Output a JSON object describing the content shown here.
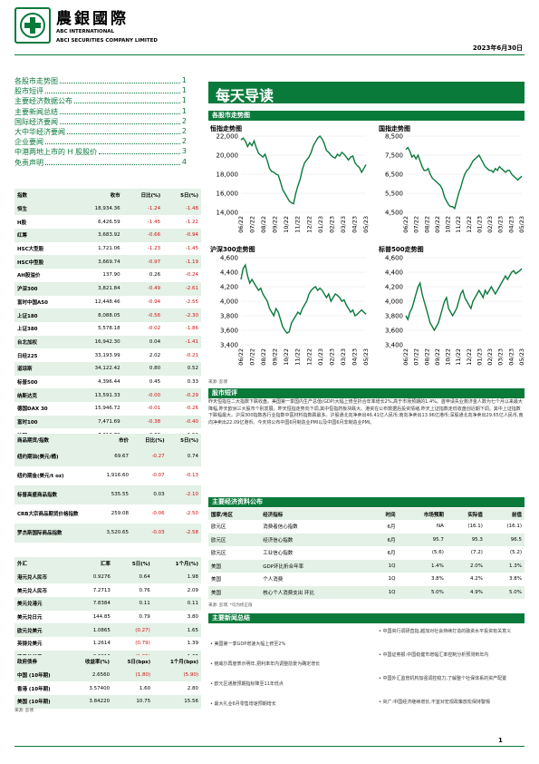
{
  "header": {
    "brand_cn": "農銀國際",
    "brand_en1": "ABC INTERNATIONAL",
    "brand_en2": "ABCI SECURITIES COMPANY LIMITED",
    "date": "2023年6月30日"
  },
  "toc": [
    {
      "label": "各股市走势图",
      "page": "1"
    },
    {
      "label": "股市短评",
      "page": "1"
    },
    {
      "label": "主要经济数据公布",
      "page": "1"
    },
    {
      "label": "主要新闻总结",
      "page": "1"
    },
    {
      "label": "国际经济要闻",
      "page": "2"
    },
    {
      "label": "大中华经济要闻",
      "page": "2"
    },
    {
      "label": "企业要闻",
      "page": "2"
    },
    {
      "label": "中港两地上市的 H 股股价",
      "page": "3"
    },
    {
      "label": "免责声明",
      "page": "4"
    }
  ],
  "title": "每天导读",
  "sections": {
    "charts": "各股市走势图",
    "commentary": "股市短评",
    "econ": "主要经济资料公布",
    "news": "主要新闻总结"
  },
  "charts": [
    {
      "title": "恒指走势图",
      "type": "line",
      "yticks": [
        "22,000",
        "20,000",
        "18,000",
        "16,000",
        "14,000"
      ],
      "ylim": [
        14000,
        22000
      ],
      "xticks": [
        "06/22",
        "07/22",
        "08/22",
        "09/22",
        "10/22",
        "11/22",
        "12/22",
        "01/23",
        "02/23",
        "03/23",
        "04/23",
        "05/23"
      ],
      "values": [
        21600,
        21800,
        21500,
        20900,
        21300,
        21000,
        21500,
        20800,
        20200,
        20000,
        19800,
        20100,
        19400,
        18600,
        18300,
        18200,
        18000,
        17900,
        17200,
        16400,
        16000,
        15600,
        15200,
        15000,
        14900,
        16000,
        16800,
        17500,
        18500,
        19200,
        19500,
        19800,
        20300,
        21000,
        21400,
        21800,
        22000,
        21700,
        21200,
        20500,
        20300,
        20000,
        19800,
        19700,
        20100,
        19900,
        20300,
        20100,
        19800,
        19500,
        19800,
        19900,
        19200,
        18900,
        18700,
        18200,
        18600,
        19000
      ]
    },
    {
      "title": "国指走势图",
      "type": "line",
      "yticks": [
        "8,500",
        "7,500",
        "6,500",
        "5,500",
        "4,500"
      ],
      "ylim": [
        4500,
        8500
      ],
      "xticks": [
        "06/22",
        "07/22",
        "08/22",
        "09/22",
        "10/22",
        "11/22",
        "12/22",
        "01/23",
        "02/23",
        "03/23",
        "04/23",
        "05/23"
      ],
      "values": [
        7800,
        7900,
        7700,
        7400,
        7500,
        7300,
        7500,
        7200,
        6900,
        6700,
        6700,
        6800,
        6500,
        6300,
        6200,
        6100,
        6000,
        5900,
        5700,
        5300,
        5100,
        4900,
        4800,
        4800,
        4700,
        5100,
        5500,
        5800,
        6200,
        6500,
        6700,
        6800,
        7000,
        7200,
        7300,
        7400,
        7500,
        7300,
        7100,
        6900,
        6800,
        6700,
        6700,
        6600,
        6800,
        6700,
        6900,
        6800,
        6700,
        6600,
        6700,
        6700,
        6500,
        6400,
        6300,
        6200,
        6300,
        6400
      ]
    },
    {
      "title": "沪深300走势图",
      "type": "line",
      "yticks": [
        "4,600",
        "4,400",
        "4,200",
        "4,000",
        "3,800",
        "3,600",
        "3,400"
      ],
      "ylim": [
        3400,
        4600
      ],
      "xticks": [
        "06/22",
        "07/22",
        "08/22",
        "09/22",
        "10/22",
        "11/22",
        "12/22",
        "01/23",
        "02/23",
        "03/23",
        "04/23",
        "05/23"
      ],
      "values": [
        4300,
        4450,
        4500,
        4350,
        4250,
        4300,
        4250,
        4200,
        4150,
        4180,
        4100,
        4050,
        4000,
        3900,
        3850,
        3800,
        3900,
        3850,
        3750,
        3650,
        3600,
        3560,
        3580,
        3700,
        3750,
        3800,
        3850,
        3820,
        3900,
        3950,
        4000,
        4100,
        4150,
        4180,
        4200,
        4150,
        4180,
        4150,
        4100,
        4050,
        4100,
        4000,
        4050,
        4100,
        4080,
        4050,
        4000,
        4020,
        3950,
        3900,
        3850,
        3880,
        3800,
        3820,
        3850,
        3880,
        3850,
        3820
      ]
    },
    {
      "title": "标普500走势图",
      "type": "line",
      "yticks": [
        "4,600",
        "4,400",
        "4,200",
        "4,000",
        "3,800",
        "3,600",
        "3,400"
      ],
      "ylim": [
        3400,
        4600
      ],
      "xticks": [
        "06/22",
        "07/22",
        "08/22",
        "09/22",
        "10/22",
        "11/22",
        "12/22",
        "01/23",
        "02/23",
        "03/23",
        "04/23",
        "05/23"
      ],
      "values": [
        3800,
        3750,
        3850,
        3900,
        4000,
        4100,
        4200,
        4250,
        4100,
        4000,
        3900,
        3800,
        3700,
        3650,
        3600,
        3650,
        3700,
        3800,
        3900,
        4000,
        4050,
        3900,
        3850,
        3800,
        3850,
        3900,
        4000,
        4100,
        4150,
        4050,
        4000,
        3950,
        3900,
        4000,
        4050,
        4100,
        4150,
        4100,
        4050,
        4150,
        4100,
        4150,
        4200,
        4150,
        4100,
        4150,
        4200,
        4250,
        4300,
        4350,
        4300,
        4350,
        4400,
        4420,
        4380,
        4400,
        4420,
        4450
      ]
    }
  ],
  "chart_source": "来源: 彭博",
  "market_table": {
    "headers": [
      "指数",
      "收市",
      "日比(%)",
      "5日(%)"
    ],
    "rows": [
      [
        "恒生",
        "18,934.36",
        "-1.24",
        "-1.48"
      ],
      [
        "H股",
        "6,426.59",
        "-1.45",
        "-1.22"
      ],
      [
        "红筹",
        "3,683.92",
        "-0.66",
        "-0.94"
      ],
      [
        "HSC大型股",
        "1,721.06",
        "-1.23",
        "-1.45"
      ],
      [
        "HSC中型股",
        "3,669.74",
        "-0.97",
        "-1.19"
      ],
      [
        "AH股溢价",
        "137.90",
        "0.26",
        "-0.24"
      ],
      [
        "沪深300",
        "3,821.84",
        "-0.49",
        "-2.61"
      ],
      [
        "富时中国A50",
        "12,448.46",
        "-0.94",
        "-2.55"
      ],
      [
        "上证180",
        "8,088.05",
        "-0.56",
        "-2.30"
      ],
      [
        "上证380",
        "5,578.18",
        "-0.02",
        "-1.86"
      ],
      [
        "台北加权",
        "16,942.30",
        "0.04",
        "-1.41"
      ],
      [
        "日经225",
        "33,193.99",
        "2.02",
        "-0.21"
      ],
      [
        "道琼斯",
        "34,122.42",
        "0.80",
        "0.52"
      ],
      [
        "标普500",
        "4,396.44",
        "0.45",
        "0.33"
      ],
      [
        "纳斯达克",
        "13,591.33",
        "-0.00",
        "-0.29"
      ],
      [
        "德国DAX 30",
        "15,946.72",
        "-0.01",
        "-0.26"
      ],
      [
        "富时100",
        "7,471.69",
        "-0.38",
        "-0.40"
      ],
      [
        "法国CAC 40",
        "7,312.73",
        "0.36",
        "1.52"
      ]
    ]
  },
  "commodity_table": {
    "headers": [
      "商品期货/指数",
      "市价",
      "日比(%)",
      "5日(%)"
    ],
    "rows": [
      [
        "纽约期油(美元/桶)",
        "69.67",
        "-0.27",
        "0.74"
      ],
      [
        "纽约期金(美元/t oz)",
        "1,916.60",
        "-0.07",
        "-0.13"
      ],
      [
        "标普高盛商品指数",
        "535.55",
        "0.03",
        "-2.10"
      ],
      [
        "CRB大宗商品期货价格指数",
        "259.08",
        "-0.06",
        "-2.50"
      ],
      [
        "罗杰斯国际商品指数",
        "3,520.65",
        "-0.03",
        "-2.58"
      ]
    ]
  },
  "fx_table": {
    "headers": [
      "外汇",
      "汇率",
      "5日(%)",
      "1个月(%)"
    ],
    "rows": [
      [
        "港元兑人民币",
        "0.9276",
        "0.64",
        "1.98"
      ],
      [
        "美元兑人民币",
        "7.2713",
        "0.76",
        "2.09"
      ],
      [
        "美元兑港元",
        "7.8384",
        "0.11",
        "0.11"
      ],
      [
        "美元兑日元",
        "144.85",
        "0.79",
        "3.80"
      ],
      [
        "欧元兑美元",
        "1.0865",
        "(0.27)",
        "1.65"
      ],
      [
        "英镑兑美元",
        "1.2614",
        "(0.79)",
        "1.39"
      ],
      [
        "澳元兑美元",
        "0.6610",
        "(1.05)",
        "1.65"
      ]
    ]
  },
  "bond_table": {
    "headers": [
      "政府债券",
      "收益率(%)",
      "5日(bps)",
      "1个月(bps)"
    ],
    "rows": [
      [
        "中国 (10年期)",
        "2.6560",
        "(1.80)",
        "(5.90)"
      ],
      [
        "香港 (10年期)",
        "3.57400",
        "1.60",
        "2.80"
      ],
      [
        "美国 (10年期)",
        "3.84220",
        "10.75",
        "15.56"
      ]
    ],
    "source": "来源: 彭博"
  },
  "commentary": "昨天恒指在二大指数下跌收盘。美国第一季国内生产总值(GDP)大幅上修至折合年率增长2%,高于市场预期的1.4%。首申请失业救济金人数为七个月以来最大降幅,昨天欧洲三大股市个别发展。昨天恒指走势向下调,其中恒指药板块跌大。港资在公布数据后投资情绪,昨天上证指数走低收盘创近期下调。其中上证指数下跌幅最大。沪深300指数各行业指数中医材料指数跌最多。沪股通北向净卖出46.41亿人民币;南向净卖出13.96亿港币;深股通北向净卖出29.65亿人民币,南向净卖出22.09亿港币。今天将公布中国6月制造业PMI以及中国6月非制造业PMI。",
  "econ_table": {
    "headers": [
      "国家/地区",
      "经济指标",
      "时间",
      "市场预期",
      "实际值",
      "前值"
    ],
    "rows": [
      [
        "欧元区",
        "消费者信心指数",
        "6月",
        "NA",
        "(16.1)",
        "(16.1)"
      ],
      [
        "欧元区",
        "经济信心指数",
        "6月",
        "95.7",
        "95.3",
        "96.5"
      ],
      [
        "欧元区",
        "工业信心指数",
        "6月",
        "(5.6)",
        "(7.2)",
        "(5.2)"
      ],
      [
        "美国",
        "GDP环比折合年率",
        "1Q",
        "1.4%",
        "2.0%",
        "1.3%"
      ],
      [
        "美国",
        "个人消费",
        "1Q",
        "3.8%",
        "4.2%",
        "3.8%"
      ],
      [
        "美国",
        "核心个人消费支出 环比",
        "1Q",
        "5.0%",
        "4.9%",
        "5.0%"
      ]
    ],
    "source": "来源: 彭博, *均为修正值"
  },
  "news_left": [
    "美国第一季GDP增速大幅上修至2%",
    "鲍威尔再度表示明年,把利率年内调整前景为确定增长",
    "欧元区通胀预期指标降至11年低点",
    "最大礼业6月零售增速预期增长"
  ],
  "news_right": [
    "中国央行调研直指,越加对社会持续打造的融资水平投资有关意义",
    "中国证券报:中国稳健市增幅汇率控制分析预测到年内",
    "中国外汇监管机构加强调控稳力,了解整个社保体系的资产配置",
    "央广:中国经济继续增长,不宜对宏观政策放松保持警惕"
  ],
  "page_number": "1"
}
